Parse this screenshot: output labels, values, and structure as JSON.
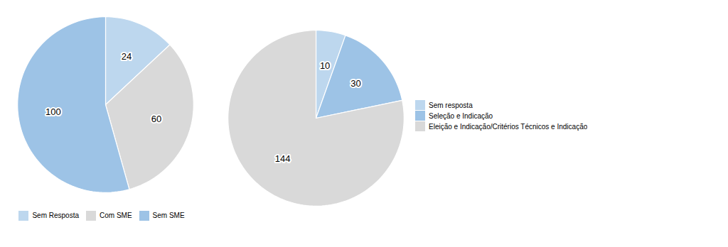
{
  "chart_data": [
    {
      "type": "pie",
      "categories": [
        "Sem Resposta",
        "Com SME",
        "Sem SME"
      ],
      "values": [
        24,
        60,
        100
      ],
      "colors": [
        "#BDD7EE",
        "#D9D9D9",
        "#9DC3E6"
      ],
      "data_labels": true,
      "legend": "bottom"
    },
    {
      "type": "pie",
      "categories": [
        "Sem resposta",
        "Seleção e Indicação",
        "Eleição e Indicação/Critérios Técnicos e Indicação"
      ],
      "values": [
        10,
        30,
        144
      ],
      "colors": [
        "#BDD7EE",
        "#9DC3E6",
        "#D9D9D9"
      ],
      "data_labels": true,
      "legend": "right"
    }
  ]
}
